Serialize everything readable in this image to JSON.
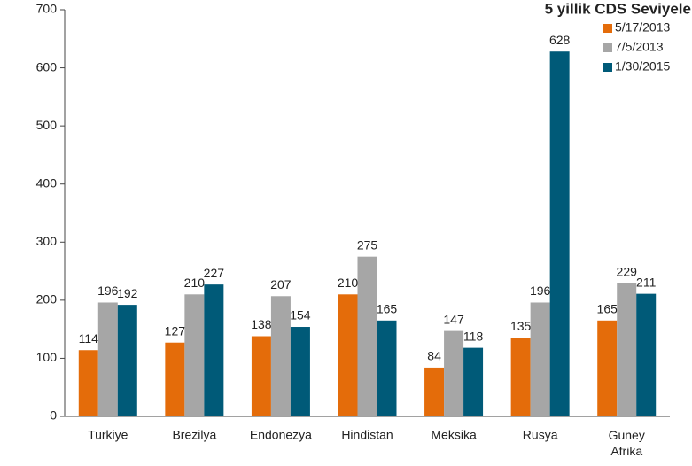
{
  "chart_data": {
    "type": "bar",
    "title": "5 yillik CDS Seviyele",
    "categories": [
      "Turkiye",
      "Brezilya",
      "Endonezya",
      "Hindistan",
      "Meksika",
      "Rusya",
      "Guney Afrika"
    ],
    "series": [
      {
        "name": "5/17/2013",
        "color": "#e46c0a",
        "values": [
          114,
          127,
          138,
          210,
          84,
          135,
          165
        ]
      },
      {
        "name": "7/5/2013",
        "color": "#a6a6a6",
        "values": [
          196,
          210,
          207,
          275,
          147,
          196,
          229
        ]
      },
      {
        "name": "1/30/2015",
        "color": "#005a78",
        "values": [
          192,
          227,
          154,
          165,
          118,
          628,
          211
        ]
      }
    ],
    "ylim": [
      0,
      700
    ],
    "yticks": [
      0,
      100,
      200,
      300,
      400,
      500,
      600,
      700
    ],
    "grid": false,
    "legend": "upper right"
  }
}
